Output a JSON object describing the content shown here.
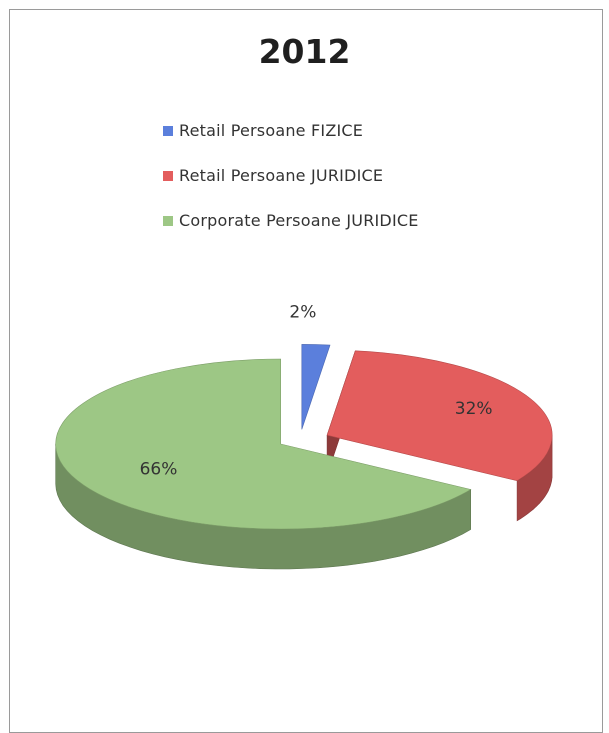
{
  "chart_data": {
    "type": "pie",
    "title": "2012",
    "legend_position": "top",
    "three_d": true,
    "exploded": true,
    "slices": [
      {
        "name": "Retail Persoane FIZICE",
        "value": 2,
        "label": "2%",
        "color": "#5b7fdc"
      },
      {
        "name": "Retail Persoane JURIDICE",
        "value": 32,
        "label": "32%",
        "color": "#e35d5d"
      },
      {
        "name": "Corporate Persoane JURIDICE",
        "value": 66,
        "label": "66%",
        "color": "#9dc785"
      }
    ]
  }
}
